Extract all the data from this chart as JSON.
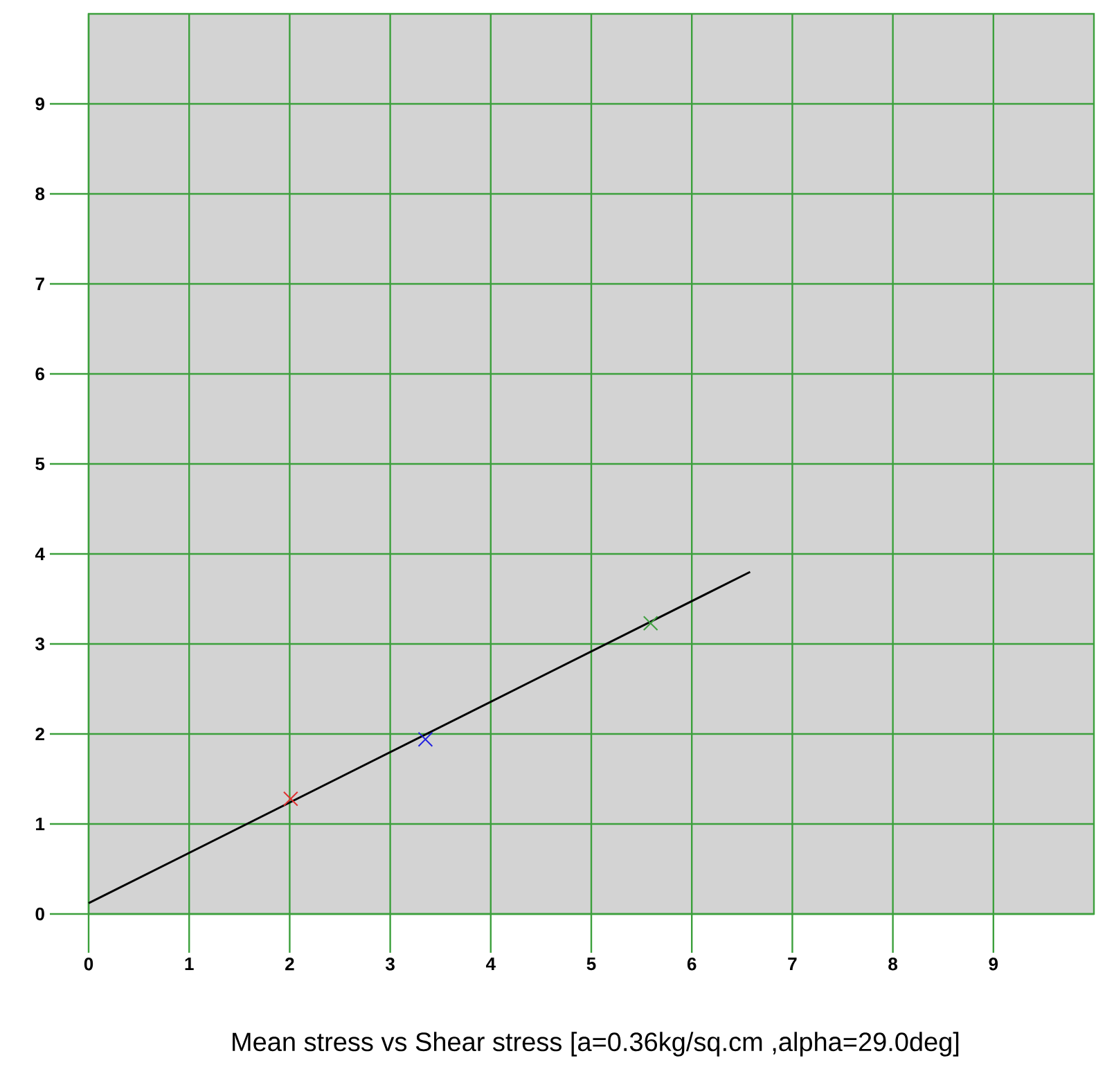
{
  "chart_data": {
    "type": "scatter",
    "xlabel": "Mean stress vs Shear stress   [a=0.36kg/sq.cm ,alpha=29.0deg]",
    "xlim": [
      0,
      10
    ],
    "ylim": [
      0,
      10
    ],
    "xticks": [
      0,
      1,
      2,
      3,
      4,
      5,
      6,
      7,
      8,
      9
    ],
    "yticks": [
      0,
      1,
      2,
      3,
      4,
      5,
      6,
      7,
      8,
      9
    ],
    "grid": true,
    "series": [
      {
        "type": "line",
        "marker": "none",
        "color": "#000000",
        "x": [
          0,
          6.58
        ],
        "values": [
          0.12,
          3.8
        ]
      },
      {
        "marker": "cross",
        "colors": [
          "#e03030",
          "#2020e0",
          "#40a040"
        ],
        "x": [
          2.01,
          3.35,
          5.59
        ],
        "values": [
          1.28,
          1.94,
          3.23
        ]
      }
    ]
  }
}
